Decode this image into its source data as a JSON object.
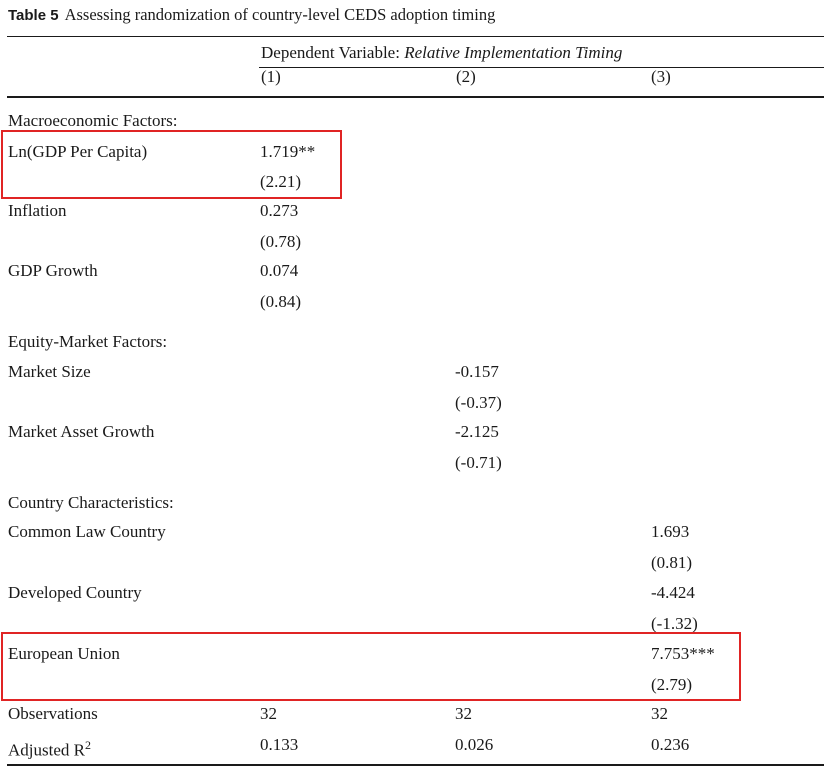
{
  "caption": {
    "label": "Table 5",
    "text": "Assessing randomization of country-level CEDS adoption timing"
  },
  "dependent_variable": {
    "prefix": "Dependent Variable: ",
    "name": "Relative Implementation Timing"
  },
  "columns": [
    "(1)",
    "(2)",
    "(3)"
  ],
  "sections": {
    "macro": "Macroeconomic Factors:",
    "equity": "Equity-Market Factors:",
    "country": "Country Characteristics:"
  },
  "rows": {
    "ln_gdp": {
      "label": "Ln(GDP Per Capita)",
      "coef": "1.719**",
      "t": "(2.21)"
    },
    "inflation": {
      "label": "Inflation",
      "coef": "0.273",
      "t": "(0.78)"
    },
    "gdp_growth": {
      "label": "GDP Growth",
      "coef": "0.074",
      "t": "(0.84)"
    },
    "market_size": {
      "label": "Market Size",
      "coef": "-0.157",
      "t": "(-0.37)"
    },
    "market_asset_growth": {
      "label": "Market Asset Growth",
      "coef": "-2.125",
      "t": "(-0.71)"
    },
    "common_law": {
      "label": "Common Law Country",
      "coef": "1.693",
      "t": "(0.81)"
    },
    "developed": {
      "label": "Developed Country",
      "coef": "-4.424",
      "t": "(-1.32)"
    },
    "eu": {
      "label": "European Union",
      "coef": "7.753***",
      "t": "(2.79)"
    }
  },
  "observations": {
    "label": "Observations",
    "values": [
      "32",
      "32",
      "32"
    ]
  },
  "adj_r2": {
    "label_base": "Adjusted R",
    "label_sup": "2",
    "values": [
      "0.133",
      "0.026",
      "0.236"
    ]
  },
  "highlight_color": "#e02424"
}
